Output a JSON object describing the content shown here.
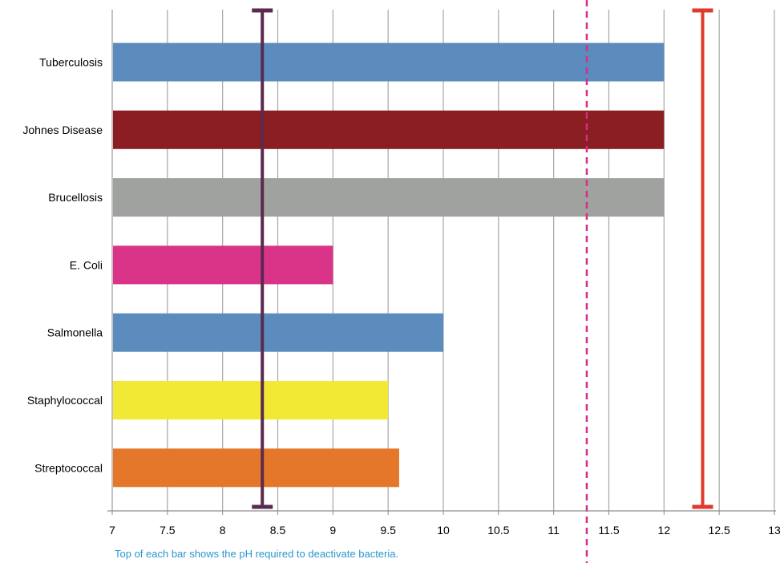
{
  "chart_data": {
    "type": "bar",
    "orientation": "horizontal",
    "categories": [
      "Tuberculosis",
      "Johnes Disease",
      "Brucellosis",
      "E. Coli",
      "Salmonella",
      "Staphylococcal",
      "Streptococcal"
    ],
    "values": [
      12,
      12,
      12,
      9,
      10,
      9.5,
      9.6
    ],
    "bar_colors": [
      "#5b8cbd",
      "#8b1e22",
      "#a0a29f",
      "#d93487",
      "#5b8cbd",
      "#f2e935",
      "#e5772b"
    ],
    "xlim": [
      7,
      13
    ],
    "x_ticks": [
      "7",
      "7.5",
      "8",
      "8.5",
      "9",
      "9.5",
      "10",
      "10.5",
      "11",
      "11.5",
      "12",
      "12.5",
      "13"
    ],
    "grid": "vertical",
    "reference_lines": [
      {
        "type": "range-bar",
        "x": 8.36,
        "color": "#5a2a4f"
      },
      {
        "type": "dashed",
        "x": 11.3,
        "color": "#d62d86"
      },
      {
        "type": "range-bar",
        "x": 12.35,
        "color": "#e03a2e"
      }
    ]
  },
  "footnote": "Top of each bar shows the pH required to deactivate bacteria."
}
